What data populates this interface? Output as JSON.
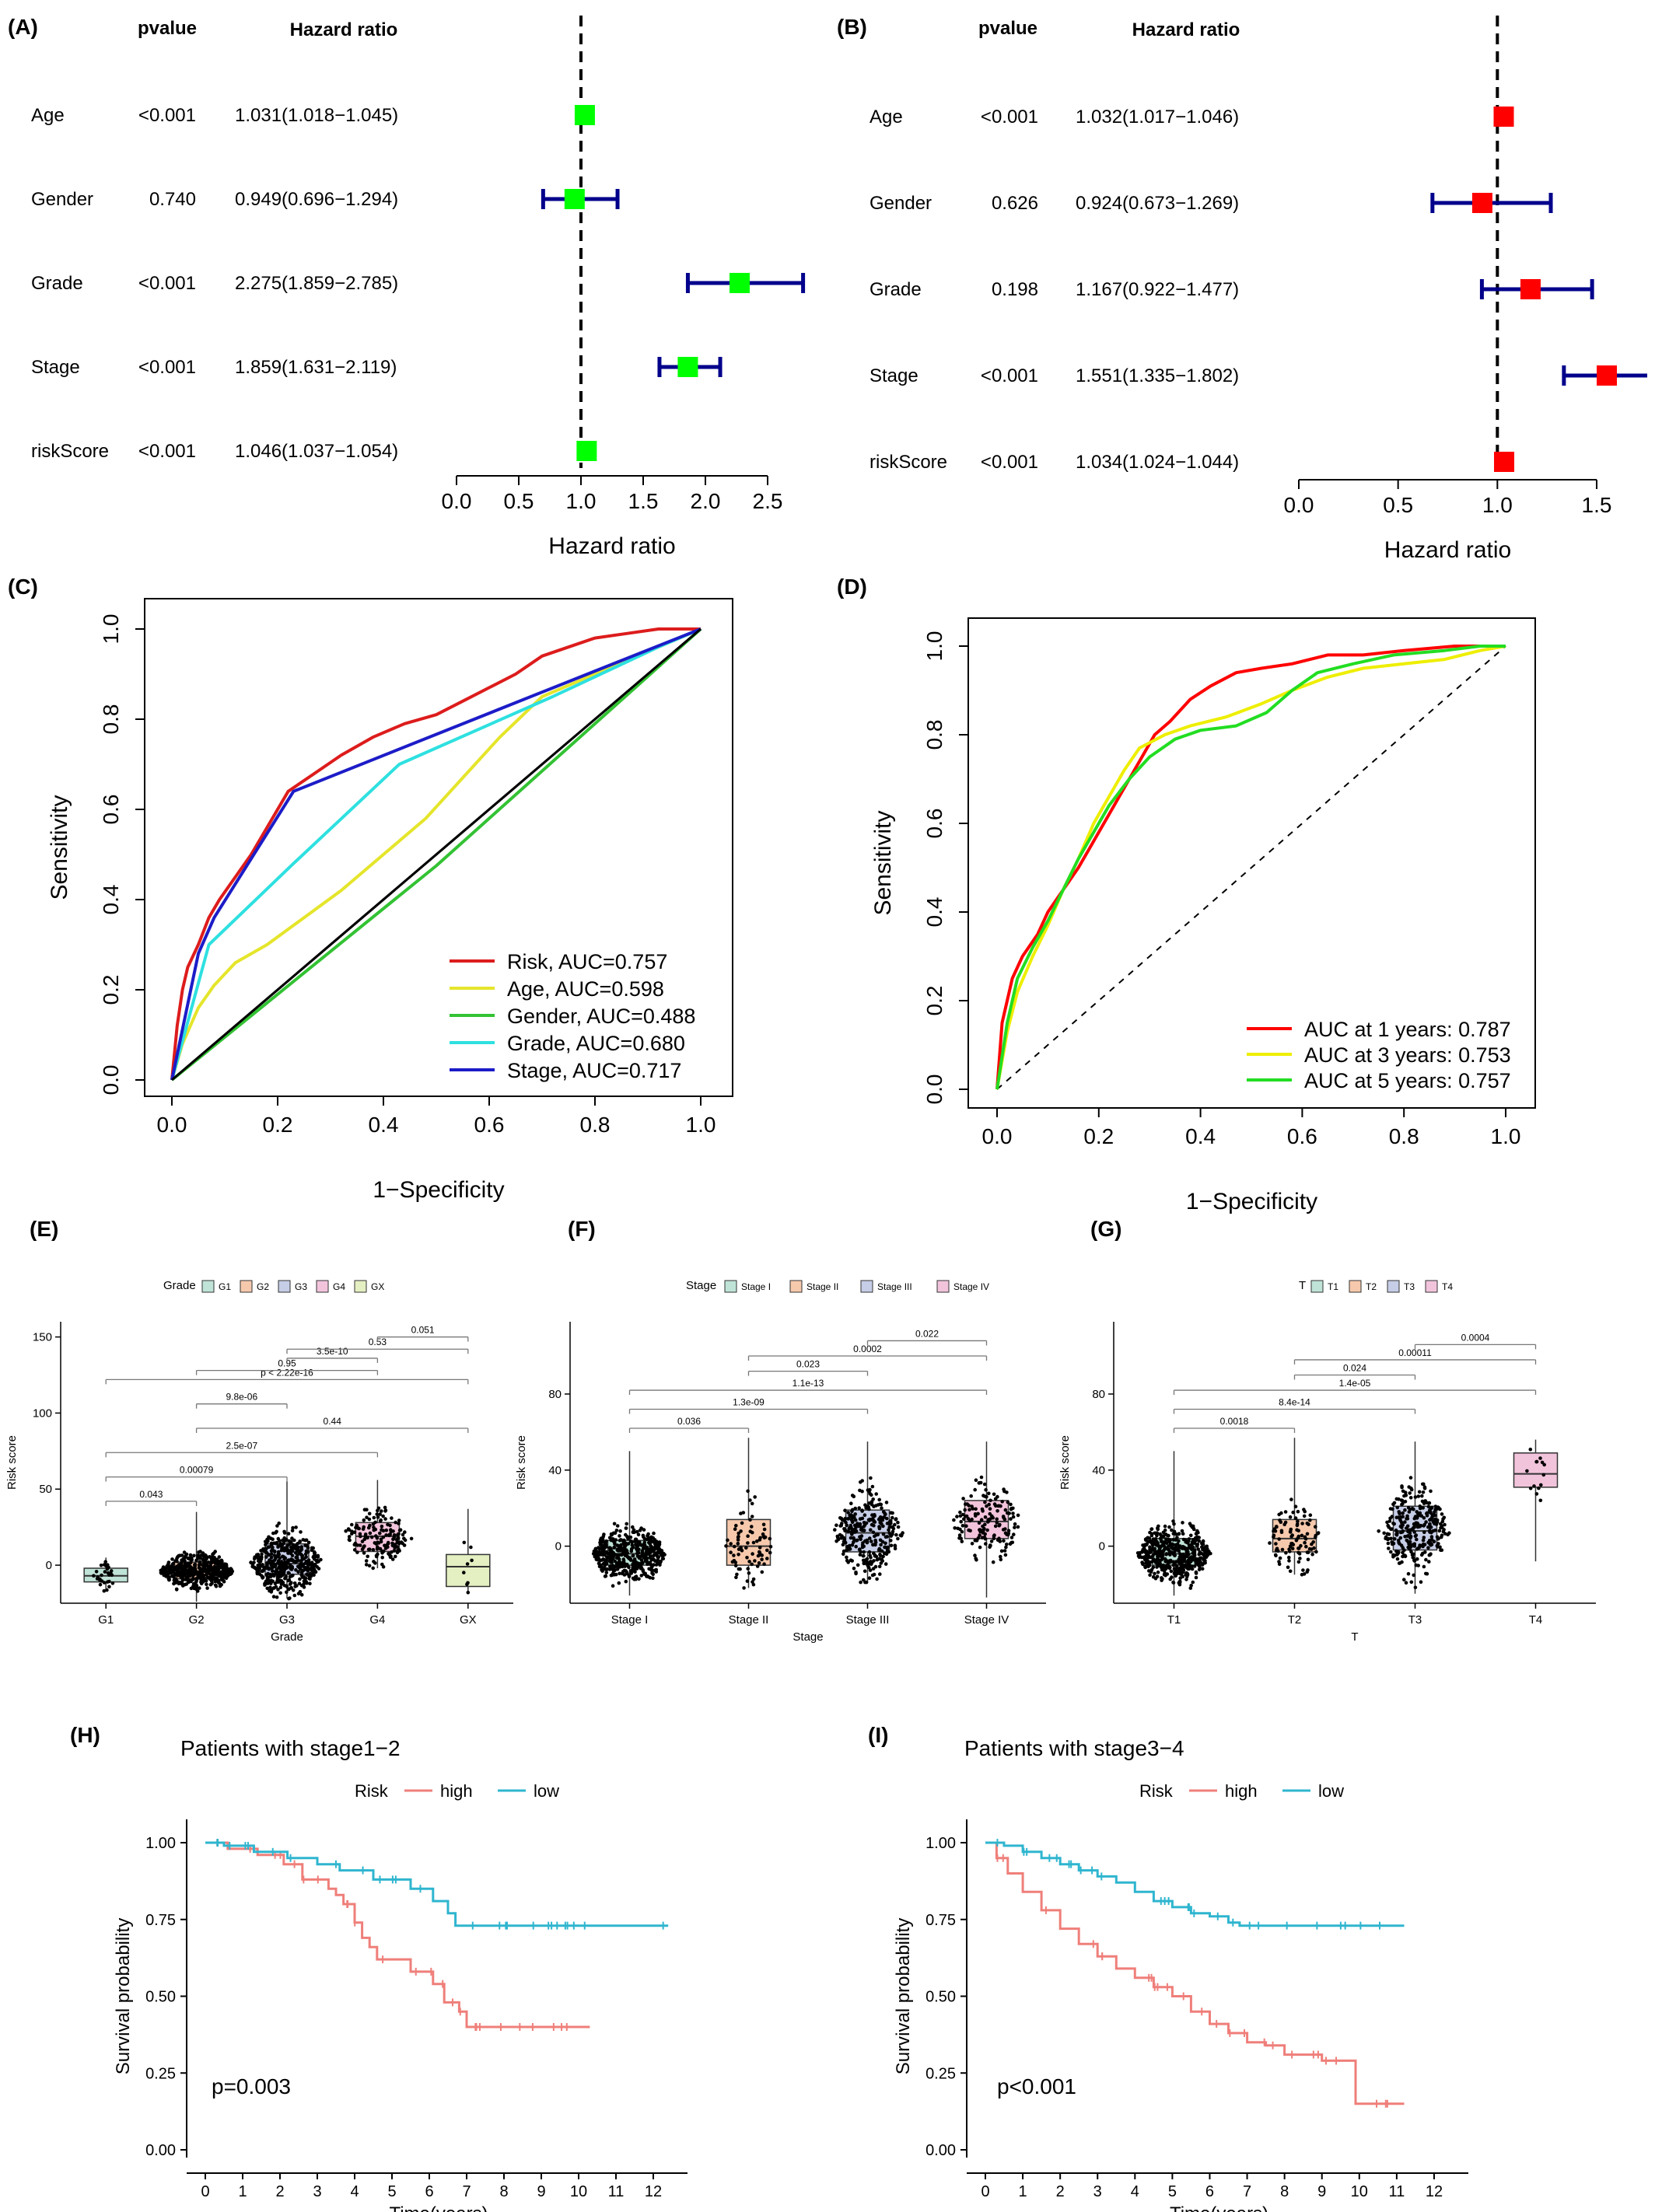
{
  "colors": {
    "forest_A": "#00ff00",
    "forest_B": "#ff0000",
    "ci": "#00008b",
    "roc_risk": "#dd1c1c",
    "roc_age": "#e5e52b",
    "roc_gender": "#33c233",
    "roc_grade": "#2ee0e0",
    "roc_stage": "#1c1cc8",
    "auc1": "#ff0000",
    "auc3": "#eeee00",
    "auc5": "#22dd22",
    "grade_fills": [
      "#bfe3d7",
      "#f6c9ad",
      "#c6cde6",
      "#f2c4dc",
      "#e4efc2"
    ],
    "km_high": "#ef7f7a",
    "km_low": "#2fb5cf"
  },
  "chart_data": [
    {
      "id": "A",
      "type": "forest",
      "panel_label": "(A)",
      "col_pvalue": "pvalue",
      "col_hr": "Hazard ratio",
      "xlabel": "Hazard ratio",
      "ticks": [
        "0.0",
        "0.5",
        "1.0",
        "1.5",
        "2.0",
        "2.5"
      ],
      "xlim": [
        0,
        2.5
      ],
      "ref": 1,
      "rows": [
        {
          "name": "Age",
          "pvalue": "<0.001",
          "hr_text": "1.031(1.018−1.045)",
          "hr": 1.031,
          "lo": 1.018,
          "hi": 1.045
        },
        {
          "name": "Gender",
          "pvalue": "0.740",
          "hr_text": "0.949(0.696−1.294)",
          "hr": 0.949,
          "lo": 0.696,
          "hi": 1.294
        },
        {
          "name": "Grade",
          "pvalue": "<0.001",
          "hr_text": "2.275(1.859−2.785)",
          "hr": 2.275,
          "lo": 1.859,
          "hi": 2.785
        },
        {
          "name": "Stage",
          "pvalue": "<0.001",
          "hr_text": "1.859(1.631−2.119)",
          "hr": 1.859,
          "lo": 1.631,
          "hi": 2.119
        },
        {
          "name": "riskScore",
          "pvalue": "<0.001",
          "hr_text": "1.046(1.037−1.054)",
          "hr": 1.046,
          "lo": 1.037,
          "hi": 1.054
        }
      ]
    },
    {
      "id": "B",
      "type": "forest",
      "panel_label": "(B)",
      "col_pvalue": "pvalue",
      "col_hr": "Hazard ratio",
      "xlabel": "Hazard ratio",
      "ticks": [
        "0.0",
        "0.5",
        "1.0",
        "1.5"
      ],
      "xlim": [
        0,
        1.5
      ],
      "ref": 1,
      "rows": [
        {
          "name": "Age",
          "pvalue": "<0.001",
          "hr_text": "1.032(1.017−1.046)",
          "hr": 1.032,
          "lo": 1.017,
          "hi": 1.046
        },
        {
          "name": "Gender",
          "pvalue": "0.626",
          "hr_text": "0.924(0.673−1.269)",
          "hr": 0.924,
          "lo": 0.673,
          "hi": 1.269
        },
        {
          "name": "Grade",
          "pvalue": "0.198",
          "hr_text": "1.167(0.922−1.477)",
          "hr": 1.167,
          "lo": 0.922,
          "hi": 1.477
        },
        {
          "name": "Stage",
          "pvalue": "<0.001",
          "hr_text": "1.551(1.335−1.802)",
          "hr": 1.551,
          "lo": 1.335,
          "hi": 1.802
        },
        {
          "name": "riskScore",
          "pvalue": "<0.001",
          "hr_text": "1.034(1.024−1.044)",
          "hr": 1.034,
          "lo": 1.024,
          "hi": 1.044
        }
      ]
    },
    {
      "id": "C",
      "type": "line",
      "panel_label": "(C)",
      "xlabel": "1−Specificity",
      "ylabel": "Sensitivity",
      "ticks": [
        "0.0",
        "0.2",
        "0.4",
        "0.6",
        "0.8",
        "1.0"
      ],
      "xlim": [
        0,
        1
      ],
      "ylim": [
        0,
        1
      ],
      "legend_position": "bottom-right",
      "series": [
        {
          "name": "Risk, AUC=0.757",
          "x": [
            0,
            0.01,
            0.02,
            0.03,
            0.05,
            0.07,
            0.09,
            0.12,
            0.15,
            0.18,
            0.22,
            0.27,
            0.32,
            0.38,
            0.44,
            0.5,
            0.55,
            0.6,
            0.65,
            0.7,
            0.75,
            0.8,
            0.86,
            0.92,
            0.97,
            1
          ],
          "y": [
            0,
            0.12,
            0.2,
            0.25,
            0.3,
            0.36,
            0.4,
            0.45,
            0.5,
            0.56,
            0.64,
            0.68,
            0.72,
            0.76,
            0.79,
            0.81,
            0.84,
            0.87,
            0.9,
            0.94,
            0.96,
            0.98,
            0.99,
            1,
            1,
            1
          ]
        },
        {
          "name": "Age, AUC=0.598",
          "x": [
            0,
            0.02,
            0.05,
            0.08,
            0.12,
            0.18,
            0.25,
            0.32,
            0.4,
            0.48,
            0.55,
            0.62,
            0.7,
            0.8,
            0.9,
            1
          ],
          "y": [
            0,
            0.08,
            0.16,
            0.21,
            0.26,
            0.3,
            0.36,
            0.42,
            0.5,
            0.58,
            0.67,
            0.76,
            0.85,
            0.9,
            0.95,
            1
          ]
        },
        {
          "name": "Gender, AUC=0.488",
          "x": [
            0,
            0.5,
            1
          ],
          "y": [
            0,
            0.475,
            1
          ]
        },
        {
          "name": "Grade, AUC=0.680",
          "x": [
            0,
            0.07,
            0.23,
            0.43,
            0.72,
            0.92,
            1
          ],
          "y": [
            0,
            0.3,
            0.48,
            0.7,
            0.85,
            0.96,
            1
          ]
        },
        {
          "name": "Stage, AUC=0.717",
          "x": [
            0,
            0.05,
            0.08,
            0.23,
            0.7,
            1
          ],
          "y": [
            0,
            0.28,
            0.36,
            0.64,
            0.86,
            1
          ]
        }
      ],
      "diagonal": true
    },
    {
      "id": "D",
      "type": "line",
      "panel_label": "(D)",
      "xlabel": "1−Specificity",
      "ylabel": "Sensitivity",
      "ticks": [
        "0.0",
        "0.2",
        "0.4",
        "0.6",
        "0.8",
        "1.0"
      ],
      "xlim": [
        0,
        1
      ],
      "ylim": [
        0,
        1
      ],
      "legend_position": "bottom-right",
      "series": [
        {
          "name": "AUC at 1 years: 0.787",
          "x": [
            0,
            0.01,
            0.03,
            0.05,
            0.08,
            0.1,
            0.13,
            0.16,
            0.19,
            0.22,
            0.25,
            0.28,
            0.31,
            0.34,
            0.38,
            0.42,
            0.47,
            0.52,
            0.58,
            0.65,
            0.72,
            0.8,
            0.9,
            1
          ],
          "y": [
            0,
            0.15,
            0.25,
            0.3,
            0.35,
            0.4,
            0.45,
            0.5,
            0.56,
            0.62,
            0.68,
            0.74,
            0.8,
            0.83,
            0.88,
            0.91,
            0.94,
            0.95,
            0.96,
            0.98,
            0.98,
            0.99,
            1,
            1
          ]
        },
        {
          "name": "AUC at 3 years: 0.753",
          "x": [
            0,
            0.02,
            0.04,
            0.07,
            0.1,
            0.13,
            0.16,
            0.19,
            0.22,
            0.25,
            0.28,
            0.33,
            0.38,
            0.45,
            0.52,
            0.58,
            0.65,
            0.72,
            0.8,
            0.88,
            0.95,
            1
          ],
          "y": [
            0,
            0.13,
            0.22,
            0.3,
            0.37,
            0.45,
            0.52,
            0.6,
            0.66,
            0.72,
            0.77,
            0.8,
            0.82,
            0.84,
            0.87,
            0.9,
            0.93,
            0.95,
            0.96,
            0.97,
            0.99,
            1
          ]
        },
        {
          "name": "AUC at 5 years: 0.757",
          "x": [
            0,
            0.02,
            0.04,
            0.07,
            0.1,
            0.13,
            0.16,
            0.19,
            0.22,
            0.26,
            0.3,
            0.35,
            0.4,
            0.47,
            0.53,
            0.58,
            0.63,
            0.7,
            0.78,
            0.88,
            0.95,
            1
          ],
          "y": [
            0,
            0.15,
            0.25,
            0.32,
            0.38,
            0.45,
            0.52,
            0.58,
            0.64,
            0.7,
            0.75,
            0.79,
            0.81,
            0.82,
            0.85,
            0.9,
            0.94,
            0.96,
            0.98,
            0.99,
            1,
            1
          ]
        }
      ],
      "diagonal": true
    },
    {
      "id": "E",
      "type": "box",
      "panel_label": "(E)",
      "legend_title": "Grade",
      "xlabel": "Grade",
      "ylabel": "Risk score",
      "ylim": [
        -25,
        160
      ],
      "yticks": [
        0,
        50,
        100,
        150
      ],
      "groups": [
        {
          "name": "G1",
          "legend": "G1",
          "q1": -11,
          "median": -7,
          "q3": -2,
          "lo": -17,
          "hi": 5,
          "n": 30
        },
        {
          "name": "G2",
          "legend": "G2",
          "q1": -9,
          "median": -4,
          "q3": 2,
          "lo": -24,
          "hi": 35,
          "n": 500
        },
        {
          "name": "G3",
          "legend": "G3",
          "q1": -6,
          "median": 1,
          "q3": 14,
          "lo": -22,
          "hi": 55,
          "n": 450
        },
        {
          "name": "G4",
          "legend": "G4",
          "q1": 9,
          "median": 19,
          "q3": 28,
          "lo": -2,
          "hi": 56,
          "n": 160
        },
        {
          "name": "GX",
          "legend": "GX",
          "q1": -14,
          "median": -1,
          "q3": 7,
          "lo": -18,
          "hi": 37,
          "n": 8
        }
      ],
      "brackets": [
        {
          "a": 0,
          "b": 1,
          "label": "0.043",
          "y": 42
        },
        {
          "a": 0,
          "b": 2,
          "label": "0.00079",
          "y": 58
        },
        {
          "a": 0,
          "b": 3,
          "label": "2.5e-07",
          "y": 74
        },
        {
          "a": 1,
          "b": 4,
          "label": "0.44",
          "y": 90
        },
        {
          "a": 1,
          "b": 2,
          "label": "9.8e-06",
          "y": 106
        },
        {
          "a": 0,
          "b": 4,
          "label": "p < 2.22e-16",
          "y": 122
        },
        {
          "a": 1,
          "b": 3,
          "label": "0.95",
          "y": 128
        },
        {
          "a": 2,
          "b": 3,
          "label": "3.5e-10",
          "y": 136
        },
        {
          "a": 2,
          "b": 4,
          "label": "0.53",
          "y": 142
        },
        {
          "a": 3,
          "b": 4,
          "label": "0.051",
          "y": 150
        }
      ]
    },
    {
      "id": "F",
      "type": "box",
      "panel_label": "(F)",
      "legend_title": "Stage",
      "xlabel": "Stage",
      "ylabel": "Risk score",
      "ylim": [
        -30,
        118
      ],
      "yticks": [
        0,
        40,
        80
      ],
      "groups": [
        {
          "name": "Stage I",
          "legend": "Stage I",
          "q1": -10,
          "median": -4,
          "q3": 3,
          "lo": -26,
          "hi": 50,
          "n": 500
        },
        {
          "name": "Stage II",
          "legend": "Stage II",
          "q1": -10,
          "median": 0,
          "q3": 14,
          "lo": -22,
          "hi": 57,
          "n": 80
        },
        {
          "name": "Stage III",
          "legend": "Stage III",
          "q1": -3,
          "median": 7,
          "q3": 19,
          "lo": -19,
          "hi": 55,
          "n": 300
        },
        {
          "name": "Stage IV",
          "legend": "Stage IV",
          "q1": 4,
          "median": 13,
          "q3": 24,
          "lo": -27,
          "hi": 55,
          "n": 160
        }
      ],
      "brackets": [
        {
          "a": 0,
          "b": 1,
          "label": "0.036",
          "y": 62
        },
        {
          "a": 0,
          "b": 2,
          "label": "1.3e-09",
          "y": 72
        },
        {
          "a": 0,
          "b": 3,
          "label": "1.1e-13",
          "y": 82
        },
        {
          "a": 1,
          "b": 2,
          "label": "0.023",
          "y": 92
        },
        {
          "a": 1,
          "b": 3,
          "label": "0.0002",
          "y": 100
        },
        {
          "a": 2,
          "b": 3,
          "label": "0.022",
          "y": 108
        }
      ]
    },
    {
      "id": "G",
      "type": "box",
      "panel_label": "(G)",
      "legend_title": "T",
      "xlabel": "T",
      "ylabel": "Risk score",
      "ylim": [
        -30,
        118
      ],
      "yticks": [
        0,
        40,
        80
      ],
      "groups": [
        {
          "name": "T1",
          "legend": "T1",
          "q1": -10,
          "median": -4,
          "q3": 4,
          "lo": -26,
          "hi": 50,
          "n": 500
        },
        {
          "name": "T2",
          "legend": "T2",
          "q1": -3,
          "median": 4,
          "q3": 14,
          "lo": -15,
          "hi": 57,
          "n": 100
        },
        {
          "name": "T3",
          "legend": "T3",
          "q1": -2,
          "median": 8,
          "q3": 21,
          "lo": -25,
          "hi": 55,
          "n": 300
        },
        {
          "name": "T4",
          "legend": "T4",
          "q1": 31,
          "median": 38,
          "q3": 49,
          "lo": -8,
          "hi": 56,
          "n": 14
        }
      ],
      "brackets": [
        {
          "a": 0,
          "b": 1,
          "label": "0.0018",
          "y": 62
        },
        {
          "a": 0,
          "b": 2,
          "label": "8.4e-14",
          "y": 72
        },
        {
          "a": 0,
          "b": 3,
          "label": "1.4e-05",
          "y": 82
        },
        {
          "a": 1,
          "b": 2,
          "label": "0.024",
          "y": 90
        },
        {
          "a": 1,
          "b": 3,
          "label": "0.00011",
          "y": 98
        },
        {
          "a": 2,
          "b": 3,
          "label": "0.0004",
          "y": 106
        }
      ]
    },
    {
      "id": "H",
      "type": "line",
      "panel_label": "(H)",
      "title": "Patients with stage1−2",
      "legend_title": "Risk",
      "xlabel": "Time(years)",
      "ylabel": "Survival probability",
      "annotation": "p=0.003",
      "xticks": [
        0,
        1,
        2,
        3,
        4,
        5,
        6,
        7,
        8,
        9,
        10,
        11,
        12
      ],
      "yticks": [
        "0.00",
        "0.25",
        "0.50",
        "0.75",
        "1.00"
      ],
      "xlim": [
        0,
        12.5
      ],
      "ylim": [
        0,
        1
      ],
      "series": [
        {
          "name": "high",
          "x": [
            0,
            0.6,
            1.4,
            2.1,
            2.6,
            3.3,
            3.5,
            3.7,
            4.0,
            4.2,
            4.4,
            4.6,
            5.5,
            6.1,
            6.4,
            6.8,
            7.0,
            10.3
          ],
          "y": [
            1,
            0.98,
            0.96,
            0.93,
            0.88,
            0.85,
            0.83,
            0.8,
            0.74,
            0.69,
            0.66,
            0.62,
            0.58,
            0.54,
            0.48,
            0.45,
            0.4,
            0.4
          ]
        },
        {
          "name": "low",
          "x": [
            0,
            0.5,
            1.3,
            2.2,
            3.0,
            3.6,
            4.5,
            5.5,
            6.1,
            6.5,
            6.7,
            12.4
          ],
          "y": [
            1,
            0.99,
            0.97,
            0.95,
            0.93,
            0.91,
            0.88,
            0.85,
            0.81,
            0.77,
            0.73,
            0.73
          ]
        }
      ]
    },
    {
      "id": "I",
      "type": "line",
      "panel_label": "(I)",
      "title": "Patients with stage3−4",
      "legend_title": "Risk",
      "xlabel": "Time(years)",
      "ylabel": "Survival probability",
      "annotation": "p<0.001",
      "xticks": [
        0,
        1,
        2,
        3,
        4,
        5,
        6,
        7,
        8,
        9,
        10,
        11,
        12
      ],
      "yticks": [
        "0.00",
        "0.25",
        "0.50",
        "0.75",
        "1.00"
      ],
      "xlim": [
        0,
        12.5
      ],
      "ylim": [
        0,
        1
      ],
      "series": [
        {
          "name": "high",
          "x": [
            0,
            0.3,
            0.6,
            1.0,
            1.5,
            2.0,
            2.5,
            3.0,
            3.5,
            4.0,
            4.5,
            5.0,
            5.5,
            6.0,
            6.5,
            7.0,
            7.5,
            8.0,
            9.0,
            9.7,
            9.9,
            11.2
          ],
          "y": [
            1,
            0.95,
            0.9,
            0.84,
            0.78,
            0.72,
            0.67,
            0.63,
            0.59,
            0.56,
            0.53,
            0.5,
            0.45,
            0.41,
            0.38,
            0.35,
            0.34,
            0.31,
            0.29,
            0.29,
            0.15,
            0.15
          ]
        },
        {
          "name": "low",
          "x": [
            0,
            0.5,
            1.0,
            1.5,
            2.0,
            2.5,
            3.0,
            3.5,
            4.0,
            4.5,
            5.0,
            5.5,
            6.0,
            6.5,
            6.8,
            11.2
          ],
          "y": [
            1,
            0.99,
            0.97,
            0.95,
            0.93,
            0.91,
            0.89,
            0.87,
            0.84,
            0.81,
            0.79,
            0.77,
            0.76,
            0.74,
            0.73,
            0.73
          ]
        }
      ]
    }
  ]
}
